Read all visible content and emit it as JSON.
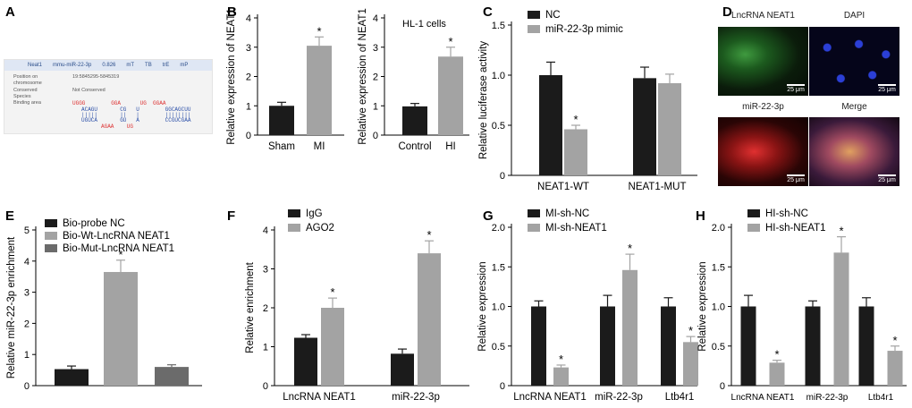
{
  "panel_letters": [
    "A",
    "B",
    "C",
    "D",
    "E",
    "F",
    "G",
    "H"
  ],
  "panel_a": {
    "header": [
      "Neat1",
      "mmu-miR-22-3p",
      "0.826",
      "mT",
      "TB",
      "trE",
      "mP"
    ],
    "rows": [
      {
        "label": "Position on",
        "value": "19:5845295-5845319"
      },
      {
        "label": "chromosome",
        "value": ""
      },
      {
        "label": "Conserved",
        "value": "Not Conserved"
      },
      {
        "label": "Species",
        "value": ""
      },
      {
        "label": "Binding area",
        "value": ""
      }
    ],
    "seq_top_red": "UGGG        GGA      UG  GGAA",
    "seq_top_blue": "ACAGU       CG   U        GGCAGCUU",
    "seq_pipes": "|||||       ||   |        ||||||||",
    "seq_bot_blue": "UGUCA       GU   A        CCGUCGAA",
    "seq_bot_red": "AGAA    UG"
  },
  "colors": {
    "dark": "#1b1b1b",
    "light": "#a3a3a3",
    "mid": "#6b6b6b",
    "sig": "*"
  },
  "panel_d": {
    "titles": [
      "LncRNA NEAT1",
      "DAPI",
      "miR-22-3p",
      "Merge"
    ],
    "scale": "25 μm"
  },
  "chart_data": [
    {
      "id": "B1",
      "type": "bar",
      "title": "",
      "ylabel": "Relative expression of NEAT1",
      "ylim": [
        0,
        4
      ],
      "yticks": [
        0,
        1,
        2,
        3,
        4
      ],
      "categories": [
        "Sham",
        "MI"
      ],
      "values": [
        1.0,
        3.05
      ],
      "errors": [
        0.12,
        0.3
      ],
      "colors": [
        "dark",
        "light"
      ],
      "sig": [
        false,
        true
      ]
    },
    {
      "id": "B2",
      "type": "bar",
      "title": "HL-1 cells",
      "ylabel": "Relative expression of NEAT1",
      "ylim": [
        0,
        4
      ],
      "yticks": [
        0,
        1,
        2,
        3,
        4
      ],
      "categories": [
        "Control",
        "HI"
      ],
      "values": [
        0.98,
        2.68
      ],
      "errors": [
        0.1,
        0.32
      ],
      "colors": [
        "dark",
        "light"
      ],
      "sig": [
        false,
        true
      ]
    },
    {
      "id": "C",
      "type": "bar",
      "ylabel": "Relative luciferase activity",
      "ylim": [
        0,
        1.5
      ],
      "yticks": [
        0,
        0.5,
        1.0,
        1.5
      ],
      "tick_labels": [
        "0",
        "0.5",
        "1.0",
        "1.5"
      ],
      "categories": [
        "NEAT1-WT",
        "NEAT1-MUT"
      ],
      "series": [
        {
          "name": "NC",
          "color": "dark",
          "values": [
            1.0,
            0.97
          ],
          "errors": [
            0.13,
            0.11
          ],
          "sig": [
            false,
            false
          ]
        },
        {
          "name": "miR-22-3p mimic",
          "color": "light",
          "values": [
            0.46,
            0.92
          ],
          "errors": [
            0.04,
            0.09
          ],
          "sig": [
            true,
            false
          ]
        }
      ]
    },
    {
      "id": "E",
      "type": "bar",
      "ylabel": "Relative miR-22-3p enrichment",
      "ylim": [
        0,
        5
      ],
      "yticks": [
        0,
        1,
        2,
        3,
        4,
        5
      ],
      "categories": [
        "Bio-probe NC",
        "Bio-Wt-LncRNA NEAT1",
        "Bio-Mut-LncRNA NEAT1"
      ],
      "values": [
        0.53,
        3.65,
        0.6
      ],
      "errors": [
        0.1,
        0.38,
        0.07
      ],
      "colors": [
        "dark",
        "light",
        "mid"
      ],
      "sig": [
        false,
        true,
        false
      ],
      "legend": [
        "Bio-probe NC",
        "Bio-Wt-LncRNA NEAT1",
        "Bio-Mut-LncRNA NEAT1"
      ]
    },
    {
      "id": "F",
      "type": "bar",
      "ylabel": "Relative enrichment",
      "ylim": [
        0,
        4
      ],
      "yticks": [
        0,
        1,
        2,
        3,
        4
      ],
      "categories": [
        "LncRNA NEAT1",
        "miR-22-3p"
      ],
      "series": [
        {
          "name": "IgG",
          "color": "dark",
          "values": [
            1.23,
            0.82
          ],
          "errors": [
            0.08,
            0.12
          ],
          "sig": [
            false,
            false
          ]
        },
        {
          "name": "AGO2",
          "color": "light",
          "values": [
            2.0,
            3.4
          ],
          "errors": [
            0.25,
            0.32
          ],
          "sig": [
            true,
            true
          ]
        }
      ]
    },
    {
      "id": "G",
      "type": "bar",
      "ylabel": "Relative expression",
      "ylim": [
        0,
        2.0
      ],
      "yticks": [
        0,
        0.5,
        1.0,
        1.5,
        2.0
      ],
      "tick_labels": [
        "0",
        "0.5",
        "1.0",
        "1.5",
        "2.0"
      ],
      "categories": [
        "LncRNA NEAT1",
        "miR-22-3p",
        "Ltb4r1"
      ],
      "series": [
        {
          "name": "MI-sh-NC",
          "color": "dark",
          "values": [
            1.0,
            1.0,
            1.0
          ],
          "errors": [
            0.07,
            0.14,
            0.11
          ],
          "sig": [
            false,
            false,
            false
          ]
        },
        {
          "name": "MI-sh-NEAT1",
          "color": "light",
          "values": [
            0.23,
            1.46,
            0.55
          ],
          "errors": [
            0.03,
            0.2,
            0.07
          ],
          "sig": [
            true,
            true,
            true
          ]
        }
      ]
    },
    {
      "id": "H",
      "type": "bar",
      "ylabel": "Relative expression",
      "ylim": [
        0,
        2.0
      ],
      "yticks": [
        0,
        0.5,
        1.0,
        1.5,
        2.0
      ],
      "tick_labels": [
        "0",
        "0.5",
        "1.0",
        "1.5",
        "2.0"
      ],
      "categories": [
        "LncRNA NEAT1",
        "miR-22-3p",
        "Ltb4r1"
      ],
      "series": [
        {
          "name": "HI-sh-NC",
          "color": "dark",
          "values": [
            1.0,
            1.0,
            1.0
          ],
          "errors": [
            0.14,
            0.07,
            0.11
          ],
          "sig": [
            false,
            false,
            false
          ]
        },
        {
          "name": "HI-sh-NEAT1",
          "color": "light",
          "values": [
            0.29,
            1.68,
            0.44
          ],
          "errors": [
            0.03,
            0.2,
            0.06
          ],
          "sig": [
            true,
            true,
            true
          ]
        }
      ]
    }
  ]
}
